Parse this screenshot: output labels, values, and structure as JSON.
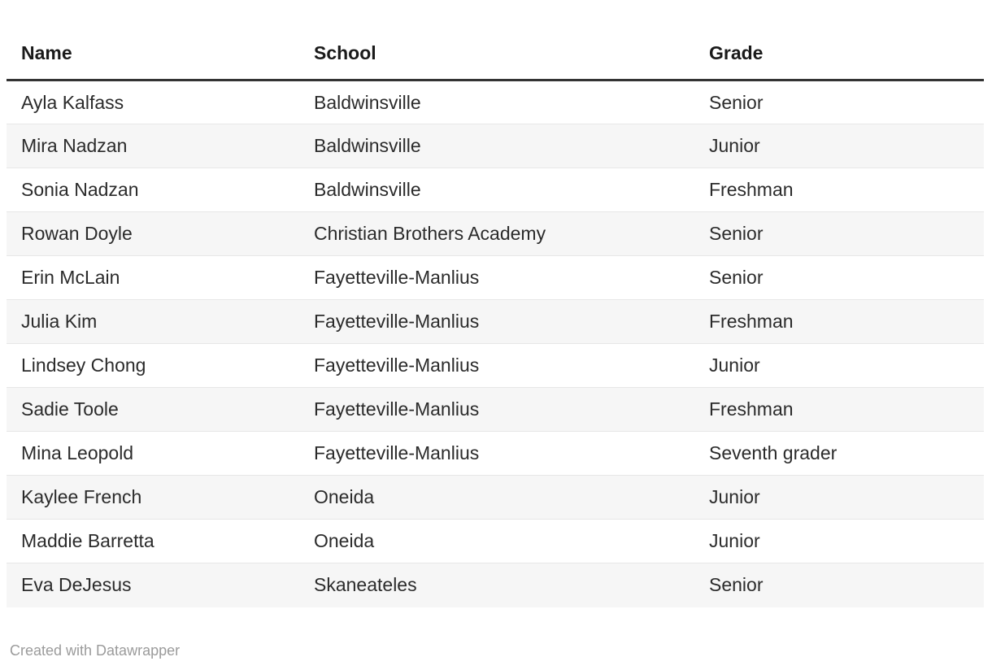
{
  "chart_data": {
    "type": "table",
    "columns": [
      "Name",
      "School",
      "Grade"
    ],
    "rows": [
      [
        "Ayla Kalfass",
        "Baldwinsville",
        "Senior"
      ],
      [
        "Mira Nadzan",
        "Baldwinsville",
        "Junior"
      ],
      [
        "Sonia Nadzan",
        "Baldwinsville",
        "Freshman"
      ],
      [
        "Rowan Doyle",
        "Christian Brothers Academy",
        "Senior"
      ],
      [
        "Erin McLain",
        "Fayetteville-Manlius",
        "Senior"
      ],
      [
        "Julia Kim",
        "Fayetteville-Manlius",
        "Freshman"
      ],
      [
        "Lindsey Chong",
        "Fayetteville-Manlius",
        "Junior"
      ],
      [
        "Sadie Toole",
        "Fayetteville-Manlius",
        "Freshman"
      ],
      [
        "Mina Leopold",
        "Fayetteville-Manlius",
        "Seventh grader"
      ],
      [
        "Kaylee French",
        "Oneida",
        "Junior"
      ],
      [
        "Maddie Barretta",
        "Oneida",
        "Junior"
      ],
      [
        "Eva DeJesus",
        "Skaneateles",
        "Senior"
      ]
    ],
    "layout": {
      "striped": true,
      "grid": "horizontal-dividers",
      "header_rule": true
    }
  },
  "footer": {
    "attribution": "Created with Datawrapper"
  },
  "colors": {
    "background": "#ffffff",
    "header_text": "#1a1a1a",
    "header_rule": "#333333",
    "body_text": "#2b2b2b",
    "stripe": "#f6f6f6",
    "row_divider": "#e7e7e7",
    "footer_text": "#9b9b9b"
  }
}
